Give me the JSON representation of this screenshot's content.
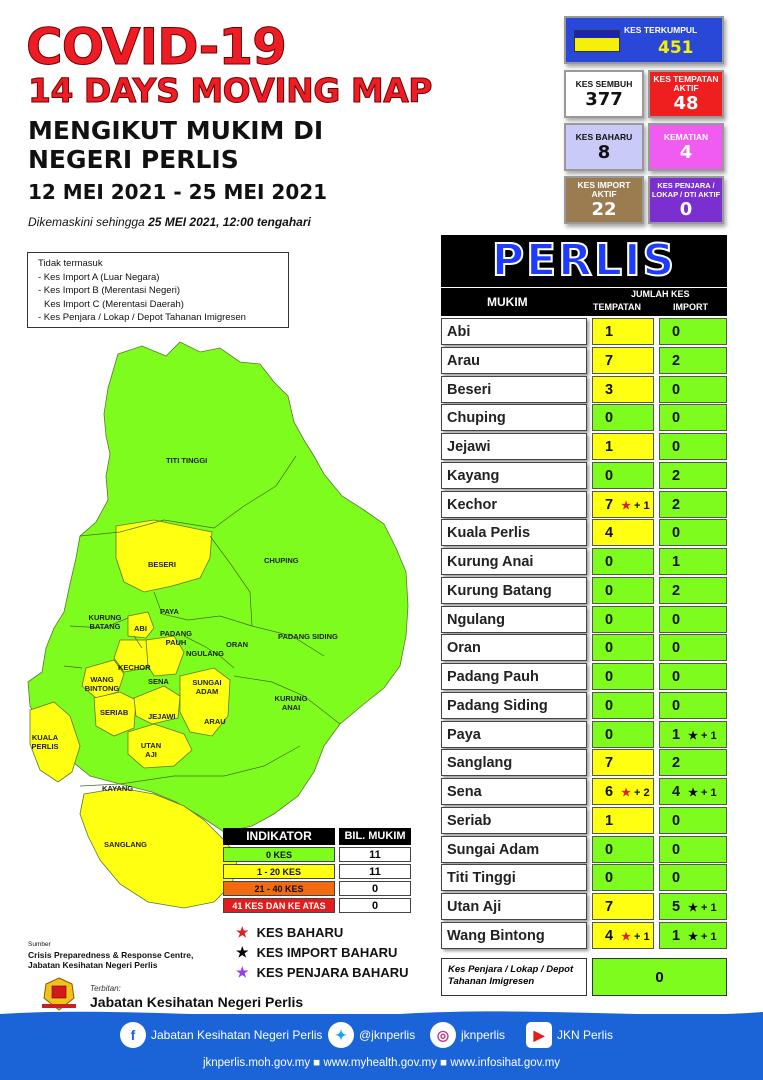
{
  "title": {
    "line1": "COVID-19",
    "line2": "14 DAYS MOVING MAP",
    "line3a": "MENGIKUT MUKIM DI",
    "line3b": "NEGERI PERLIS",
    "dates": "12 MEI 2021 - 25 MEI 2021",
    "updated_prefix": "Dikemaskini sehingga",
    "updated_value": "25 MEI 2021, 12:00 tengahari"
  },
  "note": {
    "heading": "Tidak termasuk",
    "items": [
      "- Kes Import A (Luar Negara)",
      "- Kes Import B (Merentasi Negeri)",
      "  Kes Import C (Merentasi Daerah)",
      "- Kes Penjara / Lokap / Depot Tahanan Imigresen"
    ]
  },
  "stats": {
    "terkumpul": {
      "label": "KES TERKUMPUL",
      "value": "451"
    },
    "sembuh": {
      "label": "KES SEMBUH",
      "value": "377"
    },
    "tempatan_aktif": {
      "label": "KES TEMPATAN AKTIF",
      "value": "48"
    },
    "baharu": {
      "label": "KES BAHARU",
      "value": "8"
    },
    "kematian": {
      "label": "KEMATIAN",
      "value": "4"
    },
    "import_aktif": {
      "label": "KES IMPORT AKTIF",
      "value": "22"
    },
    "penjara_aktif": {
      "label": "KES PENJARA / LOKAP / DTI AKTIF",
      "value": "0"
    }
  },
  "table": {
    "state": "PERLIS",
    "col_mukim": "MUKIM",
    "col_group": "JUMLAH KES",
    "col_tempatan": "TEMPATAN",
    "col_import": "IMPORT",
    "rows": [
      {
        "name": "Abi",
        "tempatan": "1",
        "import": "0",
        "t_new": "",
        "i_new": ""
      },
      {
        "name": "Arau",
        "tempatan": "7",
        "import": "2",
        "t_new": "",
        "i_new": ""
      },
      {
        "name": "Beseri",
        "tempatan": "3",
        "import": "0",
        "t_new": "",
        "i_new": ""
      },
      {
        "name": "Chuping",
        "tempatan": "0",
        "import": "0",
        "t_new": "",
        "i_new": ""
      },
      {
        "name": "Jejawi",
        "tempatan": "1",
        "import": "0",
        "t_new": "",
        "i_new": ""
      },
      {
        "name": "Kayang",
        "tempatan": "0",
        "import": "2",
        "t_new": "",
        "i_new": ""
      },
      {
        "name": "Kechor",
        "tempatan": "7",
        "import": "2",
        "t_new": "+ 1",
        "i_new": ""
      },
      {
        "name": "Kuala Perlis",
        "tempatan": "4",
        "import": "0",
        "t_new": "",
        "i_new": ""
      },
      {
        "name": "Kurung Anai",
        "tempatan": "0",
        "import": "1",
        "t_new": "",
        "i_new": ""
      },
      {
        "name": "Kurung Batang",
        "tempatan": "0",
        "import": "2",
        "t_new": "",
        "i_new": ""
      },
      {
        "name": "Ngulang",
        "tempatan": "0",
        "import": "0",
        "t_new": "",
        "i_new": ""
      },
      {
        "name": "Oran",
        "tempatan": "0",
        "import": "0",
        "t_new": "",
        "i_new": ""
      },
      {
        "name": "Padang Pauh",
        "tempatan": "0",
        "import": "0",
        "t_new": "",
        "i_new": ""
      },
      {
        "name": "Padang Siding",
        "tempatan": "0",
        "import": "0",
        "t_new": "",
        "i_new": ""
      },
      {
        "name": "Paya",
        "tempatan": "0",
        "import": "1",
        "t_new": "",
        "i_new": "+ 1"
      },
      {
        "name": "Sanglang",
        "tempatan": "7",
        "import": "2",
        "t_new": "",
        "i_new": ""
      },
      {
        "name": "Sena",
        "tempatan": "6",
        "import": "4",
        "t_new": "+ 2",
        "i_new": "+ 1"
      },
      {
        "name": "Seriab",
        "tempatan": "1",
        "import": "0",
        "t_new": "",
        "i_new": ""
      },
      {
        "name": "Sungai Adam",
        "tempatan": "0",
        "import": "0",
        "t_new": "",
        "i_new": ""
      },
      {
        "name": "Titi Tinggi",
        "tempatan": "0",
        "import": "0",
        "t_new": "",
        "i_new": ""
      },
      {
        "name": "Utan Aji",
        "tempatan": "7",
        "import": "5",
        "t_new": "",
        "i_new": "+ 1"
      },
      {
        "name": "Wang Bintong",
        "tempatan": "4",
        "import": "1",
        "t_new": "+ 1",
        "i_new": "+ 1"
      }
    ],
    "penjara_label": "Kes Penjara / Lokap / Depot Tahanan Imigresen",
    "penjara_value": "0"
  },
  "indicator": {
    "header": "INDIKATOR",
    "header_count": "BIL. MUKIM",
    "levels": [
      {
        "label": "0 KES",
        "count": "11",
        "color": "#7dfc1e"
      },
      {
        "label": "1 - 20 KES",
        "count": "11",
        "color": "#ffff12"
      },
      {
        "label": "21 - 40 KES",
        "count": "0",
        "color": "#f26b12"
      },
      {
        "label": "41 KES DAN KE ATAS",
        "count": "0",
        "color": "#e21d1d"
      }
    ]
  },
  "legend": {
    "baharu": "KES BAHARU",
    "import_baharu": "KES IMPORT BAHARU",
    "penjara_baharu": "KES PENJARA BAHARU"
  },
  "map_labels": {
    "titi_tinggi": "TITI TINGGI",
    "beseri": "BESERI",
    "chuping": "CHUPING",
    "kurung_batang": "KURUNG BATANG",
    "paya": "PAYA",
    "abi": "ABI",
    "padang_pauh": "PADANG PAUH",
    "ngulang": "NGULANG",
    "oran": "ORAN",
    "padang_siding": "PADANG SIDING",
    "kechor": "KECHOR",
    "wang_bintong": "WANG BINTONG",
    "sena": "SENA",
    "sungai_adam": "SUNGAI ADAM",
    "seriab": "SERIAB",
    "jejawi": "JEJAWI",
    "arau": "ARAU",
    "kurung_anai": "KURUNG ANAI",
    "kuala_perlis": "KUALA PERLIS",
    "utan_aji": "UTAN AJI",
    "kayang": "KAYANG",
    "sanglang": "SANGLANG"
  },
  "source": {
    "label": "Sumber",
    "line1": "Crisis Preparedness & Response Centre,",
    "line2": "Jabatan Kesihatan Negeri Perlis"
  },
  "publisher": {
    "label": "Terbitan:",
    "name": "Jabatan Kesihatan Negeri Perlis"
  },
  "footer": {
    "facebook": "Jabatan Kesihatan Negeri Perlis",
    "twitter": "@jknperlis",
    "instagram": "jknperlis",
    "youtube": "JKN Perlis",
    "urls": "jknperlis.moh.gov.my ■ www.myhealth.gov.my ■ www.infosihat.gov.my"
  },
  "colors": {
    "green": "#7dfc1e",
    "yellow": "#ffff12",
    "title_red": "#ee1c24",
    "footer_blue": "#1b64d8"
  }
}
